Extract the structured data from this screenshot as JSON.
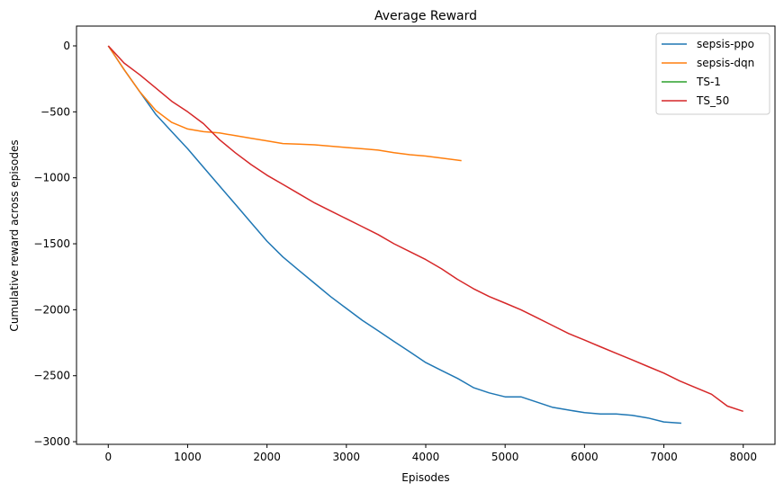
{
  "chart_data": {
    "type": "line",
    "title": "Average Reward",
    "xlabel": "Episodes",
    "ylabel": "Cumulative reward across episodes",
    "xlim": [
      -400,
      8400
    ],
    "ylim": [
      -3020,
      150
    ],
    "xticks": [
      0,
      1000,
      2000,
      3000,
      4000,
      5000,
      6000,
      7000,
      8000
    ],
    "yticks": [
      0,
      -500,
      -1000,
      -1500,
      -2000,
      -2500,
      -3000
    ],
    "grid": false,
    "legend_position": "top-right",
    "series": [
      {
        "name": "sepsis-ppo",
        "color": "#1f77b4",
        "x": [
          0,
          200,
          400,
          600,
          800,
          1000,
          1200,
          1400,
          1600,
          1800,
          2000,
          2200,
          2400,
          2600,
          2800,
          3000,
          3200,
          3400,
          3600,
          3800,
          4000,
          4200,
          4400,
          4600,
          4800,
          5000,
          5200,
          5400,
          5600,
          5800,
          6000,
          6200,
          6400,
          6600,
          6800,
          7000,
          7220
        ],
        "y": [
          0,
          -180,
          -350,
          -520,
          -650,
          -780,
          -920,
          -1060,
          -1200,
          -1340,
          -1480,
          -1600,
          -1700,
          -1800,
          -1900,
          -1990,
          -2080,
          -2160,
          -2240,
          -2320,
          -2400,
          -2460,
          -2520,
          -2590,
          -2630,
          -2660,
          -2660,
          -2700,
          -2740,
          -2760,
          -2780,
          -2790,
          -2790,
          -2800,
          -2820,
          -2850,
          -2860
        ]
      },
      {
        "name": "sepsis-dqn",
        "color": "#ff7f0e",
        "x": [
          0,
          200,
          400,
          600,
          800,
          1000,
          1200,
          1400,
          1600,
          1800,
          2000,
          2200,
          2400,
          2600,
          2800,
          3000,
          3200,
          3400,
          3600,
          3800,
          4000,
          4200,
          4450
        ],
        "y": [
          0,
          -180,
          -350,
          -490,
          -580,
          -630,
          -650,
          -660,
          -680,
          -700,
          -720,
          -740,
          -745,
          -750,
          -760,
          -770,
          -780,
          -790,
          -810,
          -825,
          -835,
          -850,
          -870
        ]
      },
      {
        "name": "TS-1",
        "color": "#2ca02c",
        "x": [],
        "y": []
      },
      {
        "name": "TS_50",
        "color": "#d62728",
        "x": [
          0,
          200,
          400,
          600,
          800,
          1000,
          1200,
          1400,
          1600,
          1800,
          2000,
          2200,
          2400,
          2600,
          2800,
          3000,
          3200,
          3400,
          3600,
          3800,
          4000,
          4200,
          4400,
          4600,
          4800,
          5000,
          5200,
          5400,
          5600,
          5800,
          6000,
          6200,
          6400,
          6600,
          6800,
          7000,
          7200,
          7400,
          7600,
          7800,
          8000
        ],
        "y": [
          0,
          -130,
          -220,
          -320,
          -420,
          -500,
          -590,
          -710,
          -810,
          -900,
          -980,
          -1050,
          -1120,
          -1190,
          -1250,
          -1310,
          -1370,
          -1430,
          -1500,
          -1560,
          -1620,
          -1690,
          -1770,
          -1840,
          -1900,
          -1950,
          -2000,
          -2060,
          -2120,
          -2180,
          -2230,
          -2280,
          -2330,
          -2380,
          -2430,
          -2480,
          -2540,
          -2590,
          -2640,
          -2730,
          -2770
        ]
      }
    ]
  }
}
